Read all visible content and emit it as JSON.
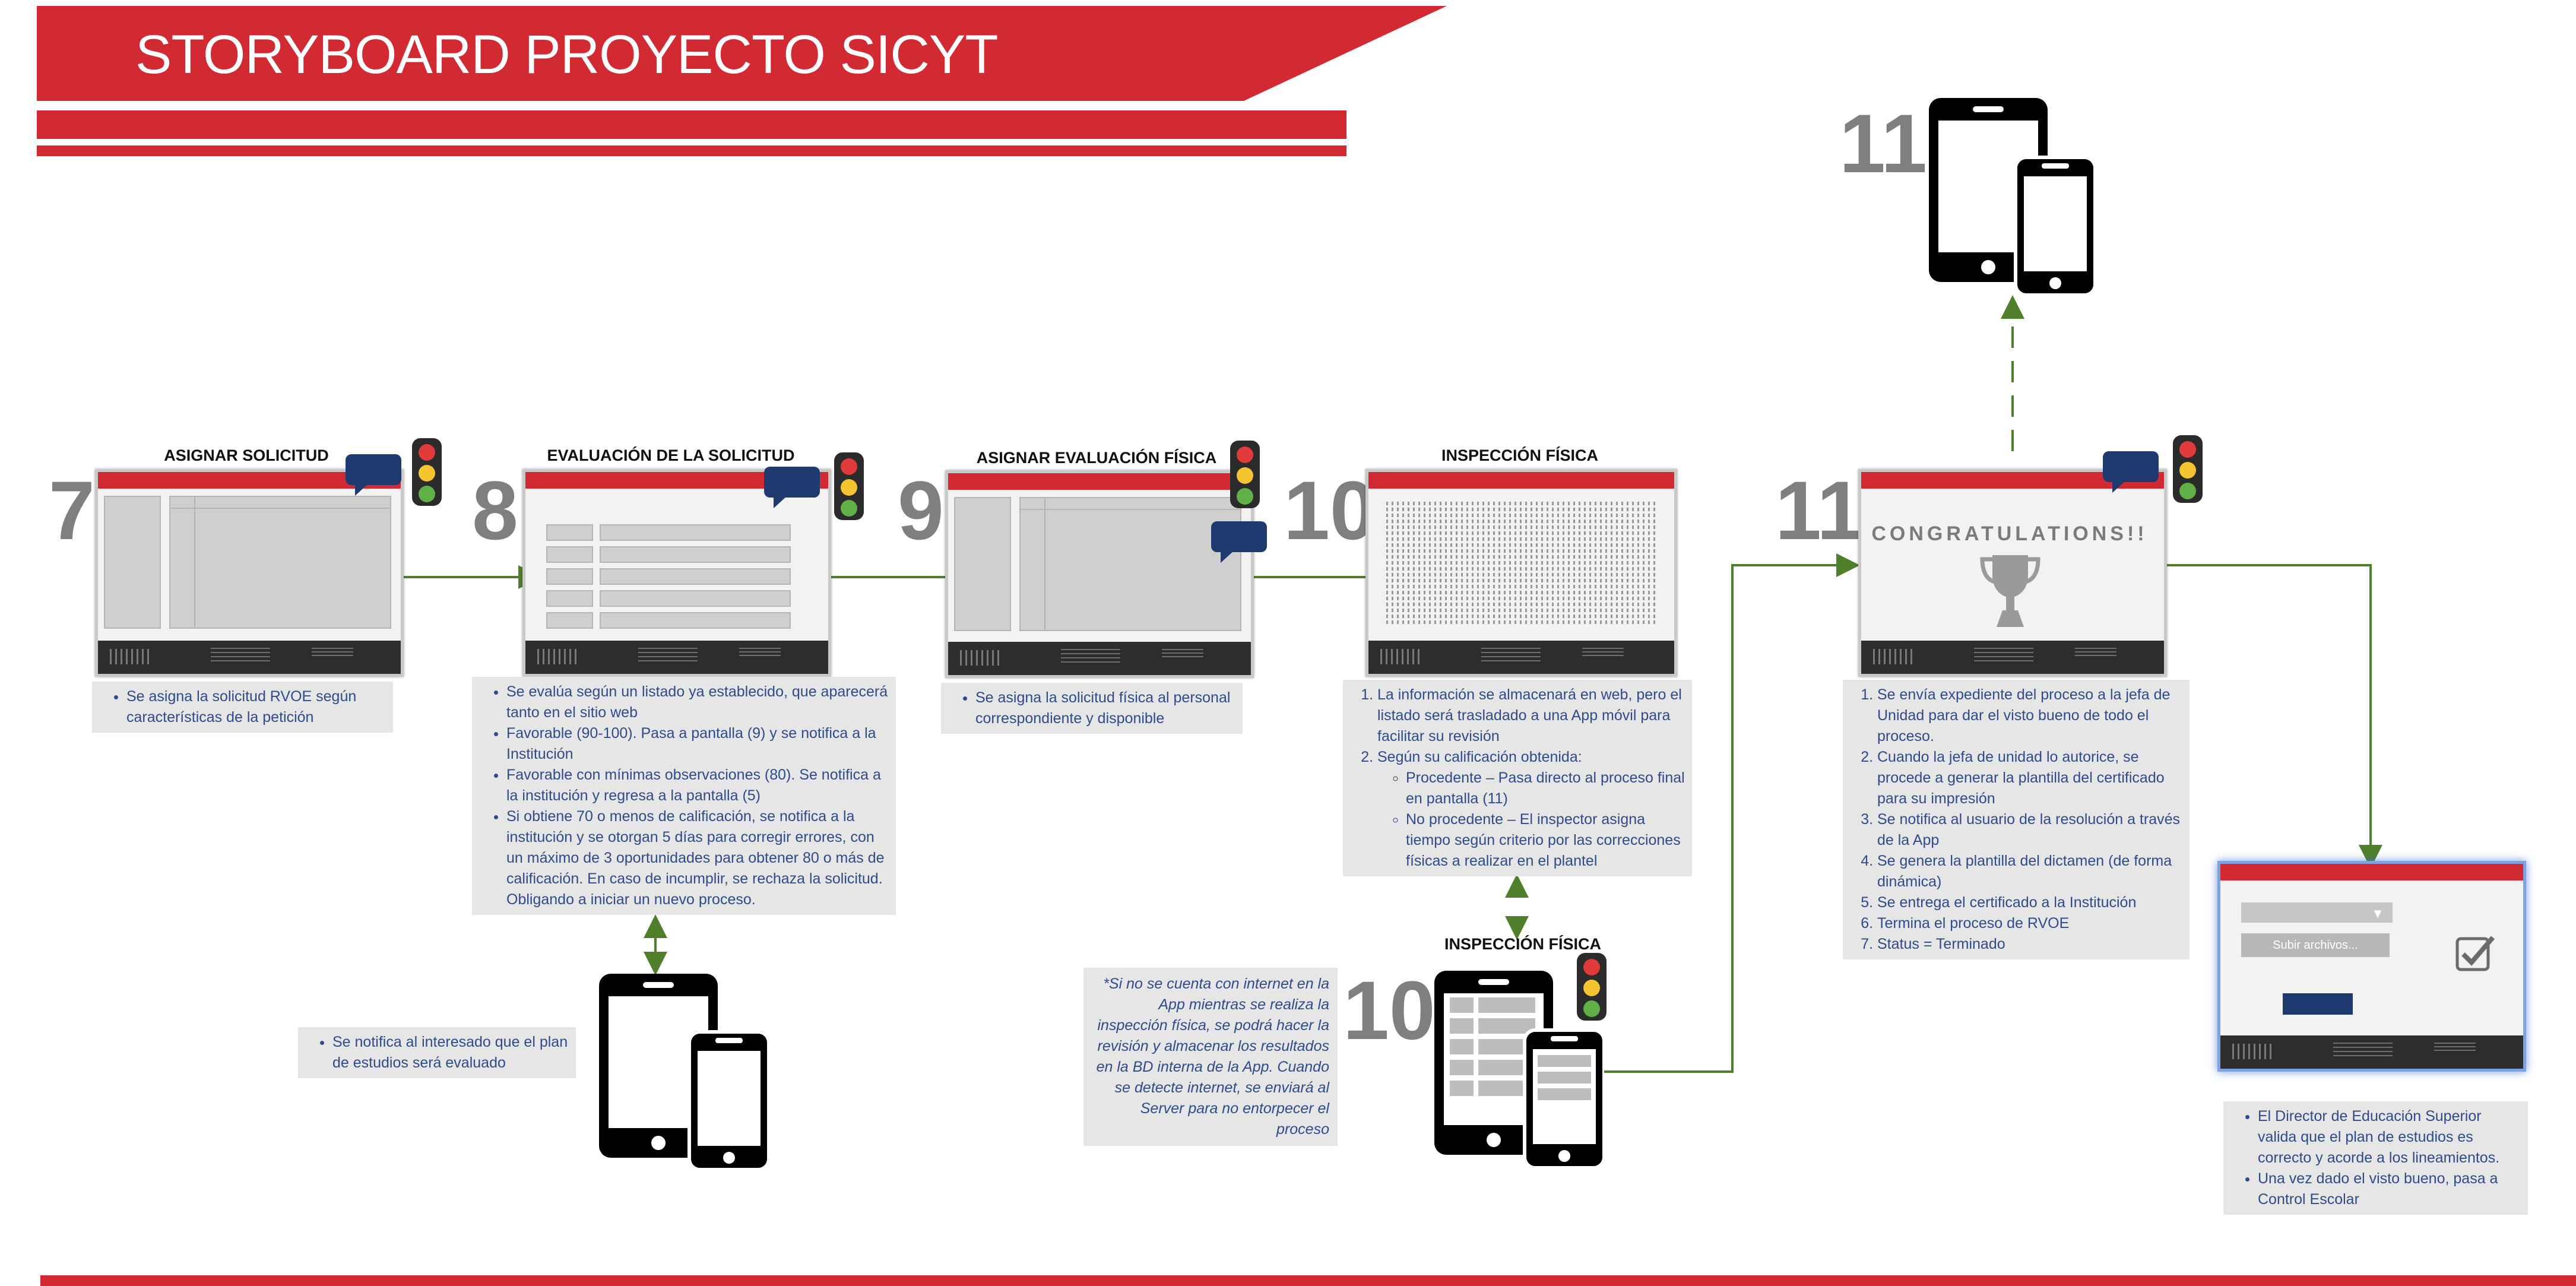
{
  "header": {
    "title": "STORYBOARD PROYECTO SICYT"
  },
  "colors": {
    "brand_red": "#d22a32",
    "step_gray": "#7f7f7f",
    "note_text": "#2e4b8a",
    "note_bg": "#e6e6e6",
    "arrow_green": "#4f7f2a",
    "bubble_navy": "#1e3a6e"
  },
  "steps": [
    {
      "num": "7",
      "title": "ASIGNAR SOLICITUD"
    },
    {
      "num": "8",
      "title": "EVALUACIÓN DE LA SOLICITUD"
    },
    {
      "num": "9",
      "title": "ASIGNAR EVALUACIÓN FÍSICA"
    },
    {
      "num": "10",
      "title": "INSPECCIÓN FÍSICA"
    },
    {
      "num": "11",
      "title": ""
    },
    {
      "num": "10",
      "title": "INSPECCIÓN FÍSICA"
    },
    {
      "num": "11",
      "title": ""
    }
  ],
  "screens": {
    "congratulations": "CONGRATULATIONS!!",
    "upload_button": "Subir archivos..."
  },
  "notes": {
    "step7": [
      "Se asigna la solicitud RVOE según características de la petición"
    ],
    "step8": [
      "Se evalúa según un listado ya establecido, que aparecerá tanto en el sitio web",
      "Favorable (90-100). Pasa a pantalla (9) y se notifica a la Institución",
      "Favorable con mínimas observaciones (80). Se notifica a la institución y regresa a la pantalla (5)",
      "Si obtiene 70 o menos de calificación, se notifica a la institución y  se otorgan 5 días para corregir errores, con un máximo de 3 oportunidades para obtener 80 o más de calificación. En caso de incumplir, se rechaza la solicitud. Obligando a iniciar un nuevo proceso."
    ],
    "step8_mobile": [
      "Se notifica al interesado que el plan de estudios será evaluado"
    ],
    "step9": [
      "Se asigna la solicitud física al personal correspondiente y disponible"
    ],
    "step10": {
      "items": [
        "La información se almacenará en web, pero el listado será trasladado a una App móvil para facilitar su revisión",
        "Según su calificación obtenida:"
      ],
      "subitems": [
        "Procedente – Pasa directo al proceso final en pantalla (11)",
        "No procedente – El inspector asigna tiempo según criterio por las correcciones físicas a realizar en el plantel"
      ]
    },
    "offline": "*Si no se cuenta con internet en la App mientras se realiza la inspección física, se podrá hacer la revisión y almacenar los resultados en la BD interna de la App. Cuando se detecte internet, se enviará al Server para no entorpecer el proceso",
    "step11": [
      "Se envía expediente del proceso a la jefa de Unidad para dar el visto bueno de todo el proceso.",
      "Cuando la jefa de unidad lo autorice, se procede a generar la plantilla del certificado para su impresión",
      "Se notifica al usuario de la resolución a través de la App",
      "Se genera la plantilla del dictamen (de forma dinámica)",
      "Se entrega el certificado a la Institución",
      "Termina el proceso de RVOE",
      "Status = Terminado"
    ],
    "director": [
      "El Director de Educación Superior valida que el plan de estudios es correcto y acorde a los lineamientos.",
      "Una vez dado el visto bueno, pasa a Control Escolar"
    ]
  }
}
